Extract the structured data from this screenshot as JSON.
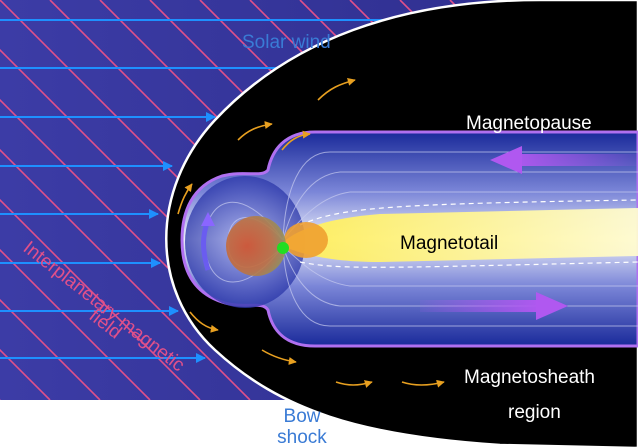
{
  "labels": {
    "solar_wind": "Solar wind",
    "magnetopause": "Magnetopause",
    "magnetotail": "Magnetotail",
    "magnetosheath_line1": "Magnetosheath",
    "magnetosheath_line2": "region",
    "bow_shock_line1": "Bow",
    "bow_shock_line2": "shock",
    "imf_line1": "Interplanetary magnetic",
    "imf_line2": "field"
  },
  "colors": {
    "solar_wind_background": "#3a3a9e",
    "imf_lines": "#e0508a",
    "solar_wind_arrows": "#1e90ff",
    "magnetosheath": "#000000",
    "magnetopause_outline": "#b070f0",
    "magnetosphere": "#2a3aa8",
    "magnetotail_plasma": "#ffff88",
    "flow_arrows": "#e8a020",
    "label_white": "#ffffff",
    "label_blue": "#3a7bd5",
    "label_pink": "#e0508a"
  }
}
